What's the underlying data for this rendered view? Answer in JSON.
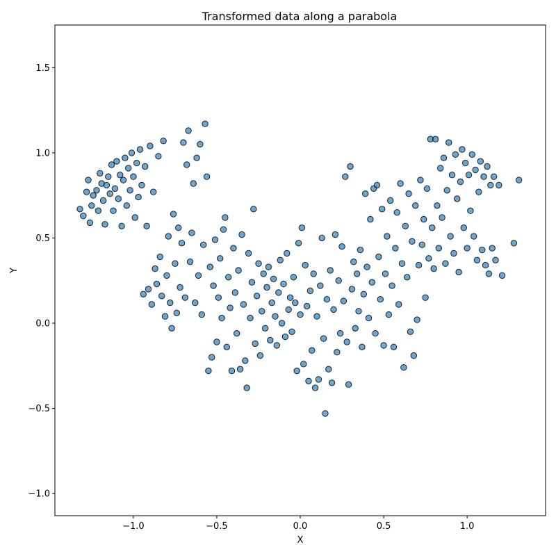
{
  "chart_data": {
    "type": "scatter",
    "title": "Transformed data along a parabola",
    "xlabel": "X",
    "ylabel": "Y",
    "xlim": [
      -1.47,
      1.47
    ],
    "ylim": [
      -1.13,
      1.75
    ],
    "xticks": [
      -1.0,
      -0.5,
      0.0,
      0.5,
      1.0
    ],
    "xtick_labels": [
      "−1.0",
      "−0.5",
      "0.0",
      "0.5",
      "1.0"
    ],
    "yticks": [
      -1.0,
      -0.5,
      0.0,
      0.5,
      1.0,
      1.5
    ],
    "ytick_labels": [
      "−1.0",
      "−0.5",
      "0.0",
      "0.5",
      "1.0",
      "1.5"
    ],
    "grid": false,
    "marker_color": "#1f77b4",
    "marker_edge_color": "#000000",
    "marker_alpha": 0.65,
    "series": [
      {
        "points": [
          [
            -1.32,
            0.67
          ],
          [
            -1.3,
            0.63
          ],
          [
            -1.28,
            0.77
          ],
          [
            -1.27,
            0.84
          ],
          [
            -1.26,
            0.59
          ],
          [
            -1.25,
            0.69
          ],
          [
            -1.24,
            0.75
          ],
          [
            -1.22,
            0.78
          ],
          [
            -1.21,
            0.66
          ],
          [
            -1.2,
            0.88
          ],
          [
            -1.19,
            0.82
          ],
          [
            -1.18,
            0.72
          ],
          [
            -1.17,
            0.58
          ],
          [
            -1.16,
            0.81
          ],
          [
            -1.15,
            0.86
          ],
          [
            -1.14,
            0.76
          ],
          [
            -1.13,
            0.93
          ],
          [
            -1.12,
            0.66
          ],
          [
            -1.11,
            0.79
          ],
          [
            -1.1,
            0.95
          ],
          [
            -1.09,
            0.73
          ],
          [
            -1.08,
            0.87
          ],
          [
            -1.07,
            0.57
          ],
          [
            -1.06,
            0.84
          ],
          [
            -1.05,
            0.97
          ],
          [
            -1.04,
            0.69
          ],
          [
            -1.03,
            0.91
          ],
          [
            -1.02,
            0.78
          ],
          [
            -1.01,
            1.0
          ],
          [
            -1.0,
            0.86
          ],
          [
            -0.99,
            0.62
          ],
          [
            -0.98,
            0.94
          ],
          [
            -0.97,
            0.74
          ],
          [
            -0.96,
            1.02
          ],
          [
            -0.95,
            0.81
          ],
          [
            -0.94,
            0.17
          ],
          [
            -0.93,
            0.92
          ],
          [
            -0.92,
            0.57
          ],
          [
            -0.91,
            0.2
          ],
          [
            -0.9,
            1.04
          ],
          [
            -0.89,
            0.11
          ],
          [
            -0.88,
            0.77
          ],
          [
            -0.87,
            0.32
          ],
          [
            -0.86,
            0.23
          ],
          [
            -0.85,
            0.98
          ],
          [
            -0.84,
            0.39
          ],
          [
            -0.83,
            0.16
          ],
          [
            -0.82,
            1.07
          ],
          [
            -0.81,
            0.04
          ],
          [
            -0.8,
            0.28
          ],
          [
            -0.79,
            0.51
          ],
          [
            -0.78,
            0.12
          ],
          [
            -0.77,
            -0.03
          ],
          [
            -0.76,
            0.64
          ],
          [
            -0.75,
            0.35
          ],
          [
            -0.74,
            0.06
          ],
          [
            -0.73,
            0.56
          ],
          [
            -0.72,
            0.21
          ],
          [
            -0.71,
            0.47
          ],
          [
            -0.7,
            1.06
          ],
          [
            -0.69,
            0.15
          ],
          [
            -0.68,
            0.93
          ],
          [
            -0.67,
            1.13
          ],
          [
            -0.66,
            0.36
          ],
          [
            -0.65,
            0.53
          ],
          [
            -0.64,
            0.82
          ],
          [
            -0.63,
            0.12
          ],
          [
            -0.62,
            0.97
          ],
          [
            -0.61,
            0.28
          ],
          [
            -0.6,
            1.05
          ],
          [
            -0.59,
            0.05
          ],
          [
            -0.58,
            0.46
          ],
          [
            -0.57,
            1.17
          ],
          [
            -0.56,
            0.86
          ],
          [
            -0.55,
            -0.28
          ],
          [
            -0.54,
            0.33
          ],
          [
            -0.53,
            -0.2
          ],
          [
            -0.52,
            0.22
          ],
          [
            -0.51,
            0.49
          ],
          [
            -0.5,
            -0.11
          ],
          [
            -0.49,
            0.15
          ],
          [
            -0.48,
            0.38
          ],
          [
            -0.47,
            0.03
          ],
          [
            -0.46,
            0.55
          ],
          [
            -0.45,
            0.62
          ],
          [
            -0.44,
            -0.14
          ],
          [
            -0.43,
            0.27
          ],
          [
            -0.42,
            0.09
          ],
          [
            -0.41,
            -0.28
          ],
          [
            -0.4,
            0.44
          ],
          [
            -0.39,
            0.18
          ],
          [
            -0.38,
            -0.06
          ],
          [
            -0.37,
            0.31
          ],
          [
            -0.36,
            -0.27
          ],
          [
            -0.35,
            0.52
          ],
          [
            -0.34,
            0.11
          ],
          [
            -0.33,
            -0.22
          ],
          [
            -0.32,
            -0.38
          ],
          [
            -0.31,
            0.41
          ],
          [
            -0.3,
            0.03
          ],
          [
            -0.29,
            0.24
          ],
          [
            -0.28,
            0.67
          ],
          [
            -0.27,
            -0.12
          ],
          [
            -0.26,
            0.16
          ],
          [
            -0.25,
            0.35
          ],
          [
            -0.24,
            -0.19
          ],
          [
            -0.23,
            0.07
          ],
          [
            -0.22,
            0.29
          ],
          [
            -0.21,
            -0.03
          ],
          [
            -0.2,
            0.21
          ],
          [
            -0.19,
            0.33
          ],
          [
            -0.18,
            -0.1
          ],
          [
            -0.17,
            0.12
          ],
          [
            -0.16,
            0.26
          ],
          [
            -0.15,
            0.04
          ],
          [
            -0.14,
            -0.13
          ],
          [
            -0.13,
            0.18
          ],
          [
            -0.12,
            0.37
          ],
          [
            -0.11,
            0.0
          ],
          [
            -0.1,
            0.23
          ],
          [
            -0.09,
            -0.08
          ],
          [
            -0.08,
            0.41
          ],
          [
            -0.07,
            0.08
          ],
          [
            -0.06,
            0.15
          ],
          [
            -0.05,
            -0.05
          ],
          [
            -0.04,
            0.27
          ],
          [
            -0.03,
            0.12
          ],
          [
            -0.02,
            -0.28
          ],
          [
            -0.01,
            0.47
          ],
          [
            0.0,
            0.05
          ],
          [
            0.01,
            0.56
          ],
          [
            0.02,
            -0.24
          ],
          [
            0.03,
            0.34
          ],
          [
            0.04,
            0.1
          ],
          [
            0.05,
            -0.34
          ],
          [
            0.06,
            0.19
          ],
          [
            0.07,
            -0.16
          ],
          [
            0.08,
            0.29
          ],
          [
            0.09,
            -0.38
          ],
          [
            0.1,
            0.04
          ],
          [
            0.11,
            -0.33
          ],
          [
            0.12,
            0.22
          ],
          [
            0.13,
            0.5
          ],
          [
            0.14,
            -0.09
          ],
          [
            0.15,
            -0.53
          ],
          [
            0.16,
            0.14
          ],
          [
            0.17,
            -0.27
          ],
          [
            0.18,
            0.31
          ],
          [
            0.19,
            -0.35
          ],
          [
            0.2,
            0.08
          ],
          [
            0.21,
            0.52
          ],
          [
            0.22,
            -0.17
          ],
          [
            0.23,
            0.25
          ],
          [
            0.24,
            -0.06
          ],
          [
            0.25,
            0.45
          ],
          [
            0.26,
            0.13
          ],
          [
            0.27,
            0.86
          ],
          [
            0.28,
            -0.11
          ],
          [
            0.29,
            -0.36
          ],
          [
            0.3,
            0.92
          ],
          [
            0.31,
            0.2
          ],
          [
            0.32,
            0.36
          ],
          [
            0.33,
            -0.03
          ],
          [
            0.34,
            0.29
          ],
          [
            0.35,
            0.07
          ],
          [
            0.36,
            0.43
          ],
          [
            0.37,
            -0.14
          ],
          [
            0.38,
            0.17
          ],
          [
            0.39,
            0.76
          ],
          [
            0.4,
            0.33
          ],
          [
            0.41,
            0.03
          ],
          [
            0.42,
            0.61
          ],
          [
            0.43,
            0.24
          ],
          [
            0.44,
            0.79
          ],
          [
            0.45,
            -0.06
          ],
          [
            0.46,
            0.81
          ],
          [
            0.47,
            0.39
          ],
          [
            0.48,
            0.14
          ],
          [
            0.49,
            0.67
          ],
          [
            0.5,
            -0.13
          ],
          [
            0.51,
            0.29
          ],
          [
            0.52,
            0.51
          ],
          [
            0.53,
            0.05
          ],
          [
            0.54,
            0.72
          ],
          [
            0.55,
            0.22
          ],
          [
            0.56,
            -0.14
          ],
          [
            0.57,
            0.44
          ],
          [
            0.58,
            0.65
          ],
          [
            0.59,
            0.11
          ],
          [
            0.6,
            0.82
          ],
          [
            0.61,
            0.35
          ],
          [
            0.62,
            -0.26
          ],
          [
            0.63,
            0.57
          ],
          [
            0.64,
            0.27
          ],
          [
            0.65,
            0.76
          ],
          [
            0.66,
            -0.05
          ],
          [
            0.67,
            0.48
          ],
          [
            0.68,
            -0.19
          ],
          [
            0.69,
            0.69
          ],
          [
            0.7,
            0.02
          ],
          [
            0.71,
            0.34
          ],
          [
            0.72,
            0.84
          ],
          [
            0.73,
            0.46
          ],
          [
            0.74,
            0.61
          ],
          [
            0.75,
            0.15
          ],
          [
            0.76,
            0.79
          ],
          [
            0.77,
            0.38
          ],
          [
            0.78,
            1.08
          ],
          [
            0.79,
            0.56
          ],
          [
            0.8,
            0.32
          ],
          [
            0.81,
            1.08
          ],
          [
            0.82,
            0.69
          ],
          [
            0.83,
            0.44
          ],
          [
            0.84,
            0.91
          ],
          [
            0.85,
            0.62
          ],
          [
            0.86,
            0.97
          ],
          [
            0.87,
            0.35
          ],
          [
            0.88,
            0.78
          ],
          [
            0.89,
            1.06
          ],
          [
            0.9,
            0.51
          ],
          [
            0.91,
            0.87
          ],
          [
            0.92,
            0.41
          ],
          [
            0.93,
            0.99
          ],
          [
            0.94,
            0.73
          ],
          [
            0.95,
            0.3
          ],
          [
            0.96,
            0.83
          ],
          [
            0.97,
            1.02
          ],
          [
            0.98,
            0.56
          ],
          [
            0.99,
            0.94
          ],
          [
            1.0,
            0.44
          ],
          [
            1.01,
            0.87
          ],
          [
            1.02,
            0.66
          ],
          [
            1.03,
            0.99
          ],
          [
            1.04,
            0.51
          ],
          [
            1.05,
            0.9
          ],
          [
            1.06,
            0.37
          ],
          [
            1.07,
            0.77
          ],
          [
            1.08,
            0.95
          ],
          [
            1.09,
            0.43
          ],
          [
            1.1,
            0.86
          ],
          [
            1.11,
            0.34
          ],
          [
            1.12,
            0.92
          ],
          [
            1.13,
            0.29
          ],
          [
            1.14,
            0.81
          ],
          [
            1.15,
            0.44
          ],
          [
            1.16,
            0.86
          ],
          [
            1.17,
            0.37
          ],
          [
            1.19,
            0.81
          ],
          [
            1.21,
            0.28
          ],
          [
            1.28,
            0.47
          ],
          [
            1.31,
            0.84
          ]
        ]
      }
    ]
  }
}
